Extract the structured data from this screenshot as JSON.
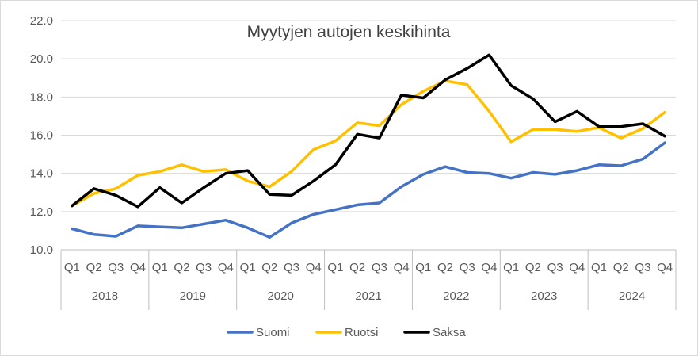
{
  "chart_data": {
    "type": "line",
    "title": "Myytyjen autojen keskihinta",
    "xlabel": "",
    "ylabel": "",
    "ylim": [
      10.0,
      22.0
    ],
    "y_ticks": [
      "10.0",
      "12.0",
      "14.0",
      "16.0",
      "18.0",
      "20.0",
      "22.0"
    ],
    "grid": true,
    "legend_position": "bottom",
    "years": [
      "2018",
      "2019",
      "2020",
      "2021",
      "2022",
      "2023",
      "2024"
    ],
    "quarters": [
      "Q1",
      "Q2",
      "Q3",
      "Q4"
    ],
    "series": [
      {
        "name": "Suomi",
        "color": "#4472c4",
        "values": [
          11.1,
          10.8,
          10.7,
          11.25,
          11.2,
          11.15,
          11.35,
          11.55,
          11.15,
          10.65,
          11.4,
          11.85,
          12.1,
          12.35,
          12.45,
          13.3,
          13.95,
          14.35,
          14.05,
          14.0,
          13.75,
          14.05,
          13.95,
          14.15,
          14.45,
          14.4,
          14.75,
          15.6
        ]
      },
      {
        "name": "Ruotsi",
        "color": "#ffc000",
        "values": [
          12.3,
          12.95,
          13.2,
          13.9,
          14.1,
          14.45,
          14.1,
          14.2,
          13.6,
          13.3,
          14.1,
          15.25,
          15.7,
          16.65,
          16.5,
          17.6,
          18.3,
          18.85,
          18.65,
          17.25,
          15.65,
          16.3,
          16.3,
          16.2,
          16.4,
          15.85,
          16.35,
          17.2
        ]
      },
      {
        "name": "Saksa",
        "color": "#000000",
        "values": [
          12.3,
          13.2,
          12.85,
          12.25,
          13.25,
          12.45,
          13.25,
          14.0,
          14.15,
          12.9,
          12.85,
          13.6,
          14.45,
          16.05,
          15.85,
          18.1,
          17.95,
          18.9,
          19.5,
          20.2,
          18.6,
          17.9,
          16.7,
          17.25,
          16.45,
          16.45,
          16.6,
          15.95
        ]
      }
    ]
  }
}
